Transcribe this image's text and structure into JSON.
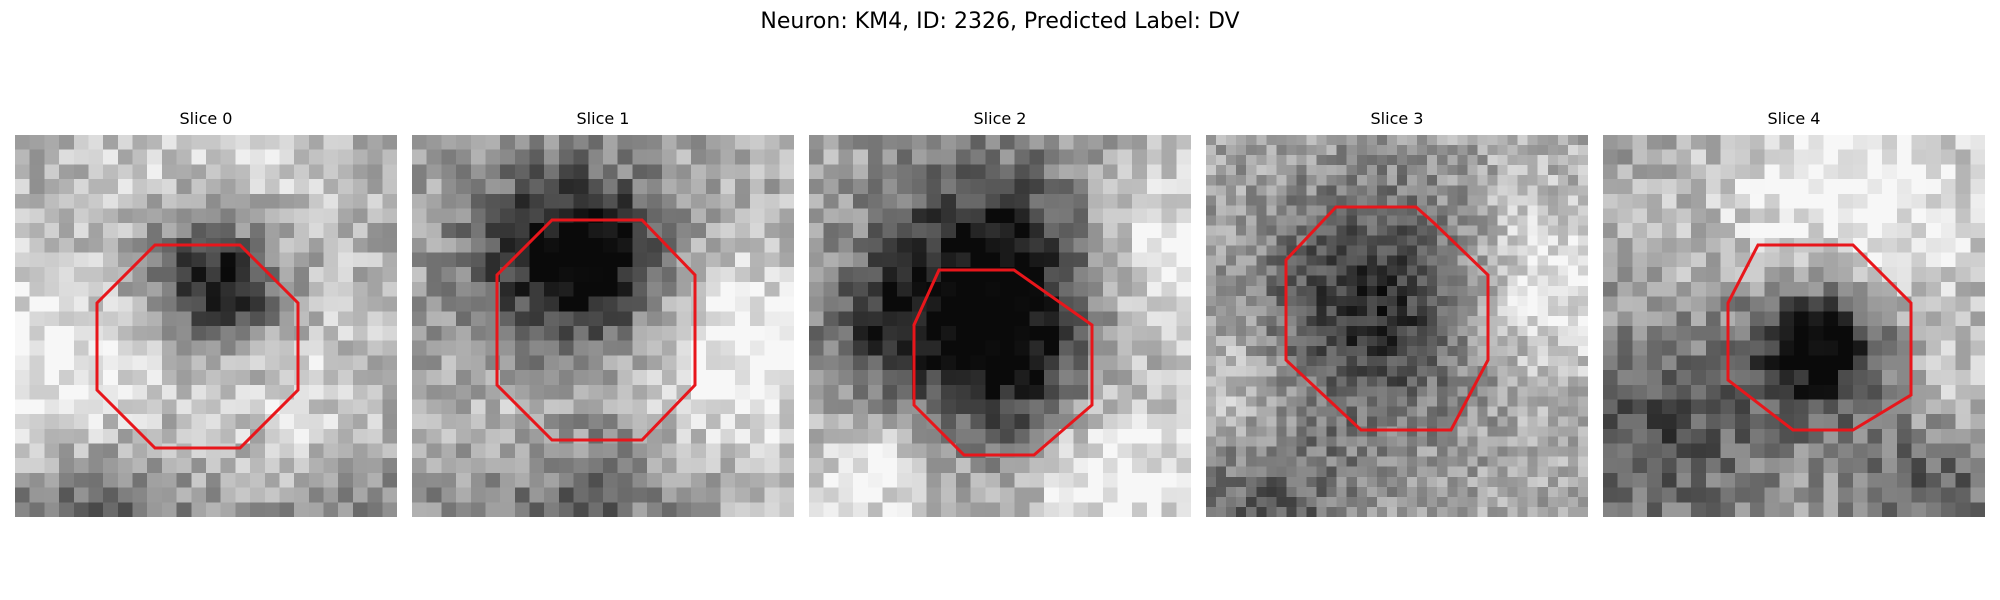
{
  "figure": {
    "title": "Neuron: KM4, ID: 2326, Predicted Label: DV"
  },
  "panels": [
    {
      "title": "Slice 0"
    },
    {
      "title": "Slice 1"
    },
    {
      "title": "Slice 2"
    },
    {
      "title": "Slice 3"
    },
    {
      "title": "Slice 4"
    }
  ],
  "colors": {
    "roi_outline": "#e8161b",
    "background": "#ffffff"
  }
}
